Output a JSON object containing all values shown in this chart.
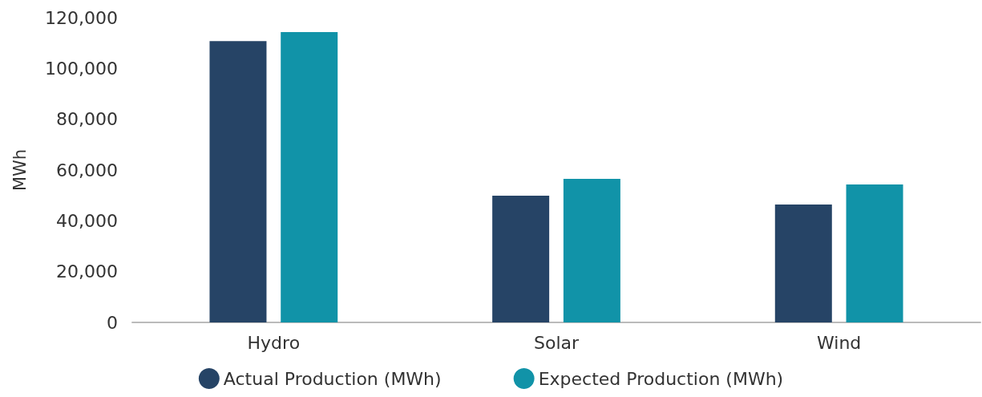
{
  "chart_data": {
    "type": "bar",
    "ylabel": "MWh",
    "categories": [
      "Hydro",
      "Solar",
      "Wind"
    ],
    "series": [
      {
        "name": "Actual Production (MWh)",
        "color": "#264466",
        "values": [
          110800,
          49900,
          46400
        ]
      },
      {
        "name": "Expected Production (MWh)",
        "color": "#1193a8",
        "values": [
          114300,
          56500,
          54300
        ]
      }
    ],
    "ylim": [
      0,
      120000
    ],
    "yticks": [
      0,
      {
        "value": 20000,
        "label": "20,000"
      },
      {
        "value": 40000,
        "label": "40,000"
      },
      {
        "value": 60000,
        "label": "60,000"
      },
      {
        "value": 80000,
        "label": "80,000"
      },
      {
        "value": 100000,
        "label": "100,000"
      },
      {
        "value": 120000,
        "label": "120,000"
      }
    ],
    "grid": false,
    "legend": "bottom"
  }
}
